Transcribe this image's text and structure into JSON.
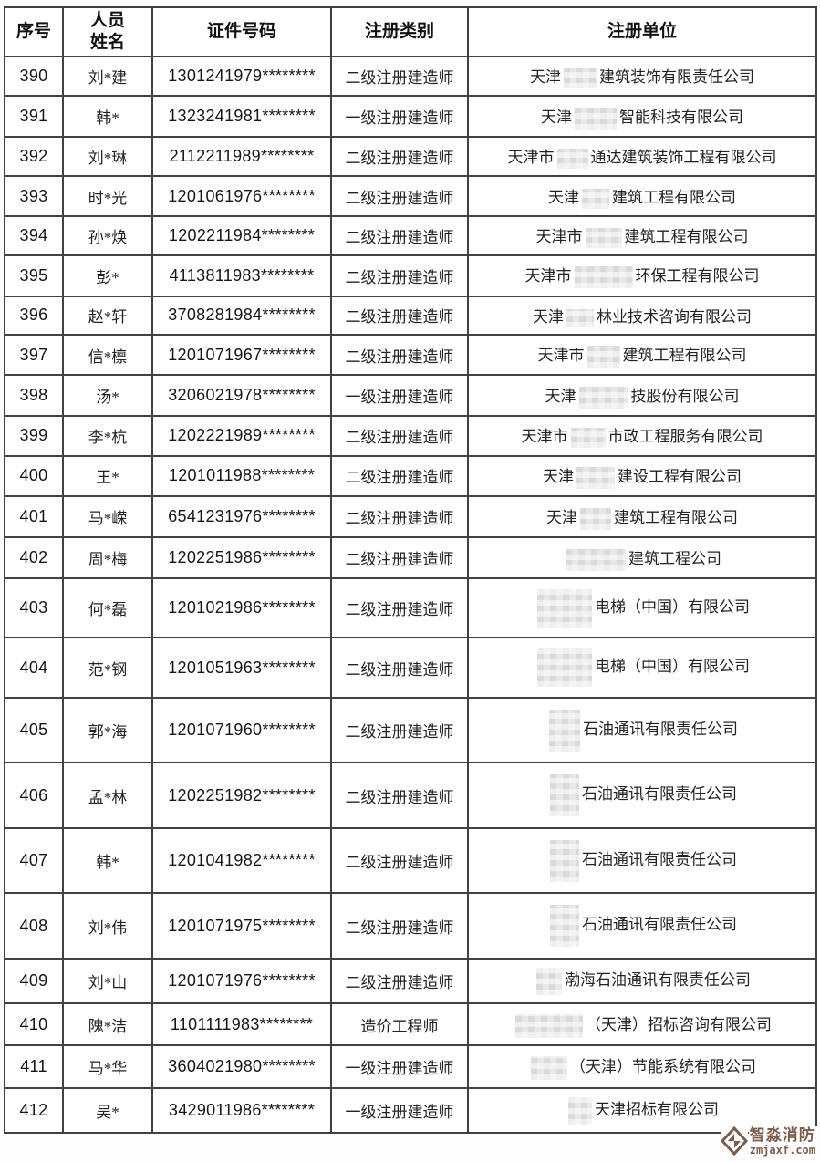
{
  "table": {
    "headers": [
      "序号",
      "人员姓名",
      "证件号码",
      "注册类别",
      "注册单位"
    ],
    "rows": [
      {
        "no": "390",
        "name": "刘*建",
        "id": "1301241979********",
        "cat": "二级注册建造师",
        "unit_prefix": "天津",
        "censor_w": 36,
        "censor_h": 22,
        "unit_suffix": "建筑装饰有限责任公司"
      },
      {
        "no": "391",
        "name": "韩*",
        "id": "1323241981********",
        "cat": "一级注册建造师",
        "unit_prefix": "天津",
        "censor_w": 46,
        "censor_h": 24,
        "unit_suffix": "智能科技有限公司"
      },
      {
        "no": "392",
        "name": "刘*琳",
        "id": "2112211989********",
        "cat": "二级注册建造师",
        "unit_prefix": "天津市",
        "censor_w": 34,
        "censor_h": 22,
        "unit_suffix": "通达建筑装饰工程有限公司"
      },
      {
        "no": "393",
        "name": "时*光",
        "id": "1201061976********",
        "cat": "二级注册建造师",
        "unit_prefix": "天津",
        "censor_w": 30,
        "censor_h": 22,
        "unit_suffix": "建筑工程有限公司"
      },
      {
        "no": "394",
        "name": "孙*焕",
        "id": "1202211984********",
        "cat": "二级注册建造师",
        "unit_prefix": "天津市",
        "censor_w": 40,
        "censor_h": 22,
        "unit_suffix": "建筑工程有限公司"
      },
      {
        "no": "395",
        "name": "彭*",
        "id": "4113811983********",
        "cat": "二级注册建造师",
        "unit_prefix": "天津市",
        "censor_w": 64,
        "censor_h": 24,
        "unit_suffix": "环保工程有限公司"
      },
      {
        "no": "396",
        "name": "赵*轩",
        "id": "3708281984********",
        "cat": "二级注册建造师",
        "unit_prefix": "天津",
        "censor_w": 30,
        "censor_h": 20,
        "unit_suffix": "林业技术咨询有限公司"
      },
      {
        "no": "397",
        "name": "信*檩",
        "id": "1201071967********",
        "cat": "二级注册建造师",
        "unit_prefix": "天津市",
        "censor_w": 36,
        "censor_h": 24,
        "unit_suffix": "建筑工程有限公司"
      },
      {
        "no": "398",
        "name": "汤*",
        "id": "3206021978********",
        "cat": "一级注册建造师",
        "unit_prefix": "天津",
        "censor_w": 54,
        "censor_h": 24,
        "unit_suffix": "技股份有限公司"
      },
      {
        "no": "399",
        "name": "李*杭",
        "id": "1202221989********",
        "cat": "二级注册建造师",
        "unit_prefix": "天津市",
        "censor_w": 38,
        "censor_h": 22,
        "unit_suffix": "市政工程服务有限公司"
      },
      {
        "no": "400",
        "name": "王*",
        "id": "1201011988********",
        "cat": "二级注册建造师",
        "unit_prefix": "天津",
        "censor_w": 42,
        "censor_h": 24,
        "unit_suffix": "建设工程有限公司"
      },
      {
        "no": "401",
        "name": "马*嵘",
        "id": "6541231976********",
        "cat": "二级注册建造师",
        "unit_prefix": "天津",
        "censor_w": 34,
        "censor_h": 24,
        "unit_suffix": "建筑工程有限公司"
      },
      {
        "no": "402",
        "name": "周*梅",
        "id": "1202251986********",
        "cat": "二级注册建造师",
        "unit_prefix": "",
        "censor_w": 66,
        "censor_h": 24,
        "unit_suffix": "建筑工程公司"
      },
      {
        "no": "403",
        "name": "何*磊",
        "id": "1201021986********",
        "cat": "二级注册建造师",
        "unit_prefix": "",
        "censor_w": 60,
        "censor_h": 42,
        "unit_suffix": "电梯（中国）有限公司"
      },
      {
        "no": "404",
        "name": "范*钢",
        "id": "1201051963********",
        "cat": "二级注册建造师",
        "unit_prefix": "",
        "censor_w": 60,
        "censor_h": 42,
        "unit_suffix": "电梯（中国）有限公司"
      },
      {
        "no": "405",
        "name": "郭*海",
        "id": "1201071960********",
        "cat": "二级注册建造师",
        "unit_prefix": "",
        "censor_w": 34,
        "censor_h": 46,
        "unit_suffix": "石油通讯有限责任公司"
      },
      {
        "no": "406",
        "name": "孟*林",
        "id": "1202251982********",
        "cat": "二级注册建造师",
        "unit_prefix": "",
        "censor_w": 32,
        "censor_h": 46,
        "unit_suffix": "石油通讯有限责任公司"
      },
      {
        "no": "407",
        "name": "韩*",
        "id": "1201041982********",
        "cat": "二级注册建造师",
        "unit_prefix": "",
        "censor_w": 32,
        "censor_h": 46,
        "unit_suffix": "石油通讯有限责任公司"
      },
      {
        "no": "408",
        "name": "刘*伟",
        "id": "1201071975********",
        "cat": "二级注册建造师",
        "unit_prefix": "",
        "censor_w": 32,
        "censor_h": 46,
        "unit_suffix": "石油通讯有限责任公司"
      },
      {
        "no": "409",
        "name": "刘*山",
        "id": "1201071976********",
        "cat": "二级注册建造师",
        "unit_prefix": "",
        "censor_w": 28,
        "censor_h": 30,
        "unit_suffix": "渤海石油通讯有限责任公司"
      },
      {
        "no": "410",
        "name": "隗*洁",
        "id": "1101111983********",
        "cat": "造价工程师",
        "unit_prefix": "",
        "censor_w": 74,
        "censor_h": 26,
        "unit_suffix": "（天津）招标咨询有限公司"
      },
      {
        "no": "411",
        "name": "马*华",
        "id": "3604021980********",
        "cat": "一级注册建造师",
        "unit_prefix": "",
        "censor_w": 40,
        "censor_h": 26,
        "unit_suffix": "（天津）节能系统有限公司"
      },
      {
        "no": "412",
        "name": "吴*",
        "id": "3429011986********",
        "cat": "一级注册建造师",
        "unit_prefix": "",
        "censor_w": 26,
        "censor_h": 30,
        "unit_suffix": "天津招标有限公司"
      }
    ]
  },
  "watermark": {
    "title": "智淼消防",
    "url": "zmjaxf.com",
    "color": "#7b5d4c"
  }
}
